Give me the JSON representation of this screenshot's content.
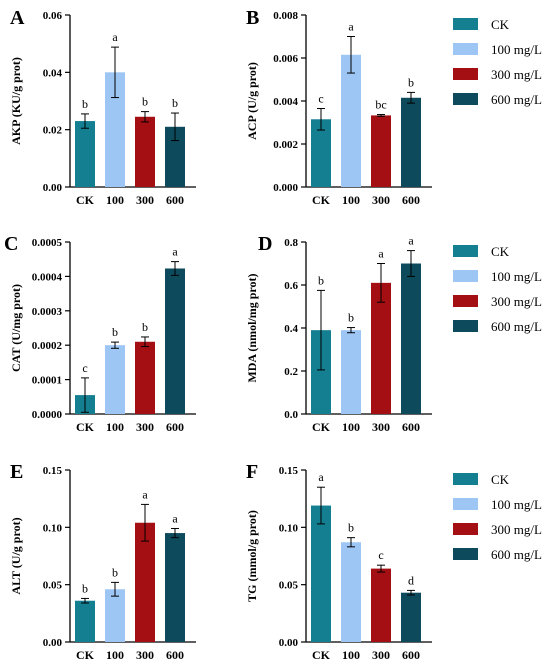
{
  "colors": {
    "CK": "#157f92",
    "100 mg/L": "#9dc6f5",
    "300 mg/L": "#a30f12",
    "600 mg/L": "#0d4a5c"
  },
  "legend": [
    "CK",
    "100 mg/L",
    "300 mg/L",
    "600 mg/L"
  ],
  "chart_data": [
    {
      "panel": "A",
      "type": "bar",
      "categories": [
        "CK",
        "100",
        "300",
        "600"
      ],
      "values": [
        0.023,
        0.04,
        0.0245,
        0.021
      ],
      "errors": [
        0.0025,
        0.0088,
        0.0018,
        0.0048
      ],
      "significance": [
        "b",
        "a",
        "b",
        "b"
      ],
      "ylabel": "AKP (KU/g prot)",
      "ylim": [
        0,
        0.06
      ],
      "yticks": [
        0,
        0.02,
        0.04,
        0.06
      ],
      "ytick_labels": [
        "0.00",
        "0.02",
        "0.04",
        "0.06"
      ]
    },
    {
      "panel": "B",
      "type": "bar",
      "categories": [
        "CK",
        "100",
        "300",
        "600"
      ],
      "values": [
        0.00315,
        0.00615,
        0.00333,
        0.00415
      ],
      "errors": [
        0.0005,
        0.00085,
        4e-05,
        0.00025
      ],
      "significance": [
        "c",
        "a",
        "bc",
        "b"
      ],
      "ylabel": "ACP (U/g prot)",
      "ylim": [
        0,
        0.008
      ],
      "yticks": [
        0,
        0.002,
        0.004,
        0.006,
        0.008
      ],
      "ytick_labels": [
        "0.000",
        "0.002",
        "0.004",
        "0.006",
        "0.008"
      ]
    },
    {
      "panel": "C",
      "type": "bar",
      "categories": [
        "CK",
        "100",
        "300",
        "600"
      ],
      "values": [
        5.5e-05,
        0.0002,
        0.00021,
        0.000423
      ],
      "errors": [
        5e-05,
        9e-06,
        1.4e-05,
        2e-05
      ],
      "significance": [
        "c",
        "b",
        "b",
        "a"
      ],
      "ylabel": "CAT (U/mg prot)",
      "ylim": [
        0,
        0.0005
      ],
      "yticks": [
        0,
        0.0001,
        0.0002,
        0.0003,
        0.0004,
        0.0005
      ],
      "ytick_labels": [
        "0.0000",
        "0.0001",
        "0.0002",
        "0.0003",
        "0.0004",
        "0.0005"
      ]
    },
    {
      "panel": "D",
      "type": "bar",
      "categories": [
        "CK",
        "100",
        "300",
        "600"
      ],
      "values": [
        0.39,
        0.39,
        0.61,
        0.7
      ],
      "errors": [
        0.185,
        0.012,
        0.09,
        0.06
      ],
      "significance": [
        "b",
        "b",
        "a",
        "a"
      ],
      "ylabel": "MDA (nmol/mg prot)",
      "ylim": [
        0,
        0.8
      ],
      "yticks": [
        0,
        0.2,
        0.4,
        0.6,
        0.8
      ],
      "ytick_labels": [
        "0.0",
        "0.2",
        "0.4",
        "0.6",
        "0.8"
      ]
    },
    {
      "panel": "E",
      "type": "bar",
      "categories": [
        "CK",
        "100",
        "300",
        "600"
      ],
      "values": [
        0.036,
        0.046,
        0.104,
        0.095
      ],
      "errors": [
        0.002,
        0.006,
        0.016,
        0.004
      ],
      "significance": [
        "b",
        "b",
        "a",
        "a"
      ],
      "ylabel": "ALT (U/g prot)",
      "ylim": [
        0,
        0.15
      ],
      "yticks": [
        0,
        0.05,
        0.1,
        0.15
      ],
      "ytick_labels": [
        "0.00",
        "0.05",
        "0.10",
        "0.15"
      ]
    },
    {
      "panel": "F",
      "type": "bar",
      "categories": [
        "CK",
        "100",
        "300",
        "600"
      ],
      "values": [
        0.119,
        0.087,
        0.064,
        0.043
      ],
      "errors": [
        0.016,
        0.004,
        0.003,
        0.002
      ],
      "significance": [
        "a",
        "b",
        "c",
        "d"
      ],
      "ylabel": "TG (mmol/g prot)",
      "ylim": [
        0,
        0.15
      ],
      "yticks": [
        0,
        0.05,
        0.1,
        0.15
      ],
      "ytick_labels": [
        "0.00",
        "0.05",
        "0.10",
        "0.15"
      ]
    }
  ]
}
